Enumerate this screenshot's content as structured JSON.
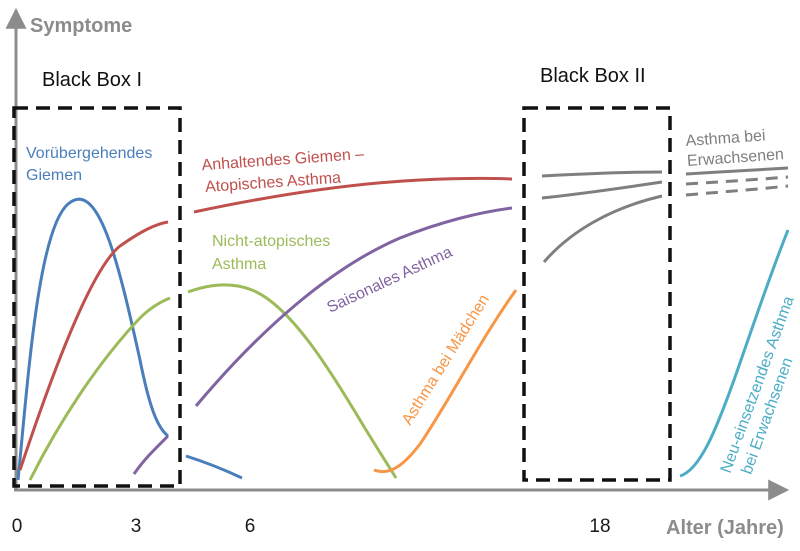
{
  "axes": {
    "y_title": "Symptome",
    "x_title": "Alter (Jahre)",
    "x_ticks": [
      "0",
      "3",
      "6",
      "18"
    ]
  },
  "boxes": {
    "box1": "Black Box I",
    "box2": "Black Box II"
  },
  "labels": {
    "transient": [
      "Vorübergehendes",
      "Giemen"
    ],
    "persistent": [
      "Anhaltendes Giemen –",
      "Atopisches Asthma"
    ],
    "nonatopic": [
      "Nicht-atopisches",
      "Asthma"
    ],
    "seasonal": "Saisonales Asthma",
    "girls": "Asthma bei Mädchen",
    "adult": [
      "Asthma bei",
      "Erwachsenen"
    ],
    "adult_onset": [
      "Neu-einsetzendes Asthma",
      "bei Erwachsenen"
    ]
  },
  "colors": {
    "axis": "#8c8c8c",
    "box": "#111111",
    "transient": "#4a7ebb",
    "persistent": "#c0504d",
    "nonatopic": "#9bbb59",
    "seasonal": "#8064a2",
    "girls": "#f79646",
    "adult": "#7f7f7f",
    "adult_onset": "#4bacc6"
  }
}
